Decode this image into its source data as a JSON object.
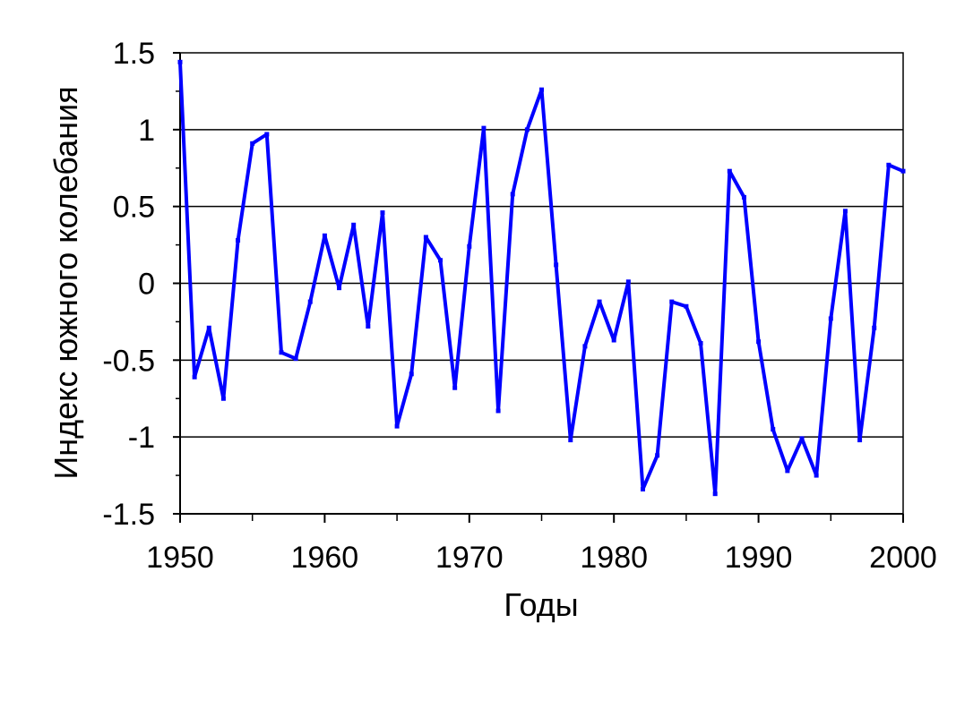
{
  "chart_data": {
    "type": "line",
    "title": "",
    "xlabel": "Годы",
    "ylabel": "Индекс южного колебания",
    "xlim": [
      1950,
      2000
    ],
    "ylim": [
      -1.5,
      1.5
    ],
    "x_ticks": [
      1950,
      1960,
      1970,
      1980,
      1990,
      2000
    ],
    "x_tick_labels": [
      "1950",
      "1960",
      "1970",
      "1980",
      "1990",
      "2000"
    ],
    "y_ticks": [
      1.5,
      1,
      0.5,
      0,
      -0.5,
      -1,
      -1.5
    ],
    "y_tick_labels": [
      "1.5",
      "1",
      "0.5",
      "0",
      "-0.5",
      "-1",
      "-1.5"
    ],
    "grid": "horizontal",
    "legend": "none",
    "series": [
      {
        "color": "#0000ff",
        "x": [
          1950,
          1951,
          1952,
          1953,
          1954,
          1955,
          1956,
          1957,
          1958,
          1959,
          1960,
          1961,
          1962,
          1963,
          1964,
          1965,
          1966,
          1967,
          1968,
          1969,
          1970,
          1971,
          1972,
          1973,
          1974,
          1975,
          1976,
          1977,
          1978,
          1979,
          1980,
          1981,
          1982,
          1983,
          1984,
          1985,
          1986,
          1987,
          1988,
          1989,
          1990,
          1991,
          1992,
          1993,
          1994,
          1995,
          1996,
          1997,
          1998,
          1999,
          2000
        ],
        "values": [
          1.44,
          -0.61,
          -0.29,
          -0.75,
          0.28,
          0.91,
          0.97,
          -0.45,
          -0.49,
          -0.12,
          0.31,
          -0.03,
          0.38,
          -0.28,
          0.46,
          -0.93,
          -0.59,
          0.3,
          0.15,
          -0.68,
          0.24,
          1.01,
          -0.83,
          0.58,
          1.0,
          1.26,
          0.12,
          -1.02,
          -0.41,
          -0.12,
          -0.37,
          0.01,
          -1.34,
          -1.12,
          -0.12,
          -0.15,
          -0.39,
          -1.37,
          0.73,
          0.56,
          -0.38,
          -0.95,
          -1.22,
          -1.01,
          -1.25,
          -0.23,
          0.47,
          -1.02,
          -0.29,
          0.77,
          0.73
        ]
      }
    ]
  }
}
